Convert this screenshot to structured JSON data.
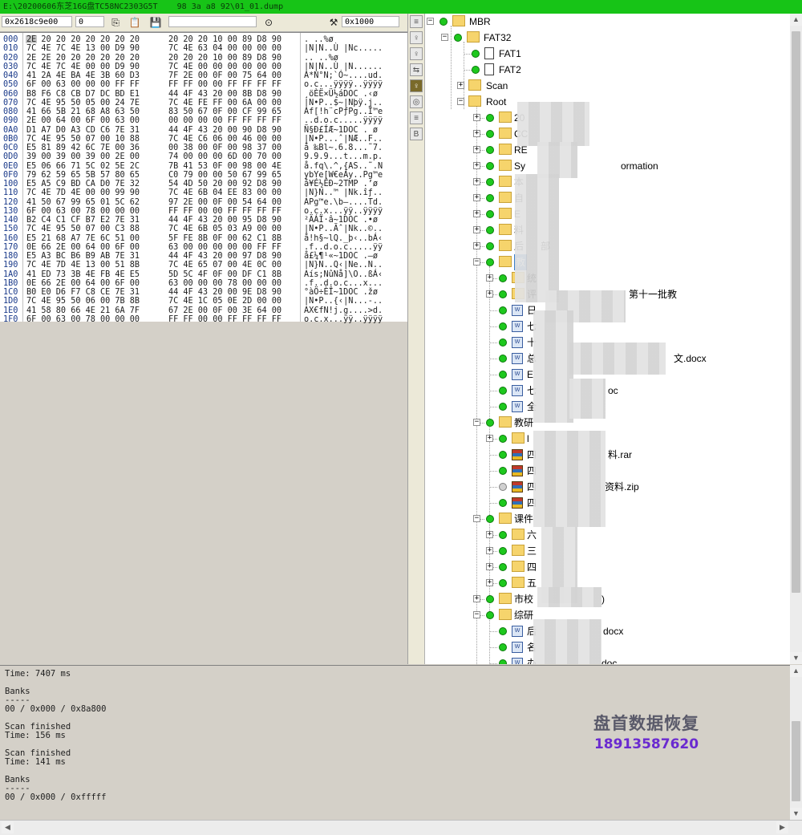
{
  "window": {
    "title": "E:\\20200606东芝16G盘TC58NC2303G5T    98 3a a8 92\\01_01.dump"
  },
  "hex_toolbar": {
    "offset": "0x2618c9e00",
    "value": "0",
    "size": "0x1000"
  },
  "hex": {
    "rows": [
      {
        "off": "000",
        "b1": "2E 20 20 20 20 20 20 20",
        "b2": "20 20 20 10 00 89 D8 90",
        "asc": ". ..%ø"
      },
      {
        "off": "010",
        "b1": "7C 4E 7C 4E 13 00 D9 90",
        "b2": "7C 4E 63 04 00 00 00 00",
        "asc": "|N|N..Ù |Nc....."
      },
      {
        "off": "020",
        "b1": "2E 2E 20 20 20 20 20 20",
        "b2": "20 20 20 10 00 89 D8 90",
        "asc": ".. ..%ø"
      },
      {
        "off": "030",
        "b1": "7C 4E 7C 4E 00 00 D9 90",
        "b2": "7C 4E 00 00 00 00 00 00",
        "asc": "|N|N..Ù |N......"
      },
      {
        "off": "040",
        "b1": "41 2A 4E BA 4E 3B 60 D3",
        "b2": "7F 2E 00 0F 00 75 64 00",
        "asc": "A*N°N;`Ó~....ud."
      },
      {
        "off": "050",
        "b1": "6F 00 63 00 00 00 FF FF",
        "b2": "FF FF 00 00 FF FF FF FF",
        "asc": "o.c...ÿÿÿÿ..ÿÿÿÿ"
      },
      {
        "off": "060",
        "b1": "B8 F6 C8 CB D7 DC BD E1",
        "b2": "44 4F 43 20 00 8B D8 90",
        "asc": "¸öÈË×Ü½áDOC .‹ø"
      },
      {
        "off": "070",
        "b1": "7C 4E 95 50 05 00 24 7E",
        "b2": "7C 4E FE FF 00 6A 00 00",
        "asc": "|N•P..$~|Nþÿ.j.."
      },
      {
        "off": "080",
        "b1": "41 66 5B 21 68 A8 63 50",
        "b2": "83 50 67 0F 00 CF 99 65",
        "asc": "Af[!h¨cPƒPg..Ï™e"
      },
      {
        "off": "090",
        "b1": "2E 00 64 00 6F 00 63 00",
        "b2": "00 00 00 00 FF FF FF FF",
        "asc": "..d.o.c.....ÿÿÿÿ"
      },
      {
        "off": "0A0",
        "b1": "D1 A7 D0 A3 CD C6 7E 31",
        "b2": "44 4F 43 20 00 90 D8 90",
        "asc": "Ñ§Ð£ÍÆ~1DOC . ø"
      },
      {
        "off": "0B0",
        "b1": "7C 4E 95 50 07 00 10 88",
        "b2": "7C 4E C6 06 00 46 00 00",
        "asc": "|N•P...ˆ|NÆ..F.."
      },
      {
        "off": "0C0",
        "b1": "E5 81 89 42 6C 7E 00 36",
        "b2": "00 38 00 0F 00 98 37 00",
        "asc": "å ‰Bl~.6.8...˜7."
      },
      {
        "off": "0D0",
        "b1": "39 00 39 00 39 00 2E 00",
        "b2": "74 00 00 00 6D 00 70 00",
        "asc": "9.9.9...t...m.p."
      },
      {
        "off": "0E0",
        "b1": "E5 06 66 71 5C 02 5E 2C",
        "b2": "7B 41 53 0F 00 98 00 4E",
        "asc": "å.fq\\.^,{AS..˜.N"
      },
      {
        "off": "0F0",
        "b1": "79 62 59 65 5B 57 80 65",
        "b2": "C0 79 00 00 50 67 99 65",
        "asc": "ybYe[W€eÀy..Pg™e"
      },
      {
        "off": "100",
        "b1": "E5 A5 C9 BD CA D0 7E 32",
        "b2": "54 4D 50 20 00 92 D8 90",
        "asc": "å¥É½ÊÐ~2TMP .’ø"
      },
      {
        "off": "110",
        "b1": "7C 4E 7D 4E 00 00 99 90",
        "b2": "7C 4E 6B 04 EE 83 00 00",
        "asc": "|N}N..™ |Nk.îƒ.."
      },
      {
        "off": "120",
        "b1": "41 50 67 99 65 01 5C 62",
        "b2": "97 2E 00 0F 00 54 64 00",
        "asc": "APg™e.\\b—....Td."
      },
      {
        "off": "130",
        "b1": "6F 00 63 00 78 00 00 00",
        "b2": "FF FF 00 00 FF FF FF FF",
        "asc": "o.c.x...ÿÿ..ÿÿÿÿ"
      },
      {
        "off": "140",
        "b1": "B2 C4 C1 CF B7 E2 7E 31",
        "b2": "44 4F 43 20 00 95 D8 90",
        "asc": "²ÄÁÏ·â~1DOC .•ø"
      },
      {
        "off": "150",
        "b1": "7C 4E 95 50 07 00 C3 88",
        "b2": "7C 4E 6B 05 03 A9 00 00",
        "asc": "|N•P..Ãˆ|Nk..©.."
      },
      {
        "off": "160",
        "b1": "E5 21 68 A7 7E 6C 51 00",
        "b2": "5F FE 8B 0F 00 62 C1 8B",
        "asc": "å!h§~lQ._þ‹..bÁ‹"
      },
      {
        "off": "170",
        "b1": "0E 66 2E 00 64 00 6F 00",
        "b2": "63 00 00 00 00 00 FF FF",
        "asc": ".f..d.o.c.....ÿÿ"
      },
      {
        "off": "180",
        "b1": "E5 A3 BC B6 B9 AB 7E 31",
        "b2": "44 4F 43 20 00 97 D8 90",
        "asc": "å£¼¶¹«~1DOC .—ø"
      },
      {
        "off": "190",
        "b1": "7C 4E 7D 4E 13 00 51 8B",
        "b2": "7C 4E 65 07 00 4E 0C 00",
        "asc": "|N}N..Q‹|Ne..N.."
      },
      {
        "off": "1A0",
        "b1": "41 ED 73 3B 4E FB 4E E5",
        "b2": "5D 5C 4F 0F 00 DF C1 8B",
        "asc": "Aís;NûNå]\\O..ßÁ‹"
      },
      {
        "off": "1B0",
        "b1": "0E 66 2E 00 64 00 6F 00",
        "b2": "63 00 00 00 78 00 00 00",
        "asc": ".f..d.o.c...x..."
      },
      {
        "off": "1C0",
        "b1": "B0 E0 D6 F7 C8 CE 7E 31",
        "b2": "44 4F 43 20 00 9E D8 90",
        "asc": "°àÖ÷ÈÎ~1DOC .žø"
      },
      {
        "off": "1D0",
        "b1": "7C 4E 95 50 06 00 7B 8B",
        "b2": "7C 4E 1C 05 0E 2D 00 00",
        "asc": "|N•P..{‹|N...-.."
      },
      {
        "off": "1E0",
        "b1": "41 58 80 66 4E 21 6A 7F",
        "b2": "67 2E 00 0F 00 3E 64 00",
        "asc": "AX€fN!j.g....>d."
      },
      {
        "off": "1F0",
        "b1": "6F 00 63 00 78 00 00 00",
        "b2": "FF FF 00 00 FF FF FF FF",
        "asc": "o.c.x...ÿÿ..ÿÿÿÿ"
      }
    ]
  },
  "side_tools": [
    "≡",
    "♀",
    "♀",
    "⇆",
    "♀",
    "◎",
    "≡",
    "B"
  ],
  "tree": {
    "mbr": "MBR",
    "fat32": "FAT32",
    "fat1": "FAT1",
    "fat2": "FAT2",
    "scan": "Scan",
    "root": "Root",
    "r1": "20",
    "r2": "CC",
    "r3": "RE",
    "r4a": "Sy",
    "r4b": "ormation",
    "r5": "本",
    "r6": "自",
    "r7": "E",
    "r8": "料",
    "r9": "后",
    "r9b": "部",
    "r10": "教",
    "r10a": "统",
    "r10b": "评",
    "r10b2": "第十一批教",
    "r10c": "日",
    "r10d": "七",
    "r10e": "十",
    "r10f": "总",
    "r10f2": "文.docx",
    "r10g": "E",
    "r10h": "七",
    "r10h2": "oc",
    "r10i": "全",
    "r11": "教研",
    "r11a": "l",
    "r11b": "四",
    "r11b2": "料.rar",
    "r11c": "四",
    "r11d": "四",
    "r11d2": "资料.zip",
    "r11e": "四",
    "r12": "课件",
    "r12a": "六",
    "r12b": "三",
    "r12c": "四",
    "r12d": "五",
    "r13": "市校",
    "r13b": ")",
    "r14": "综研",
    "r14a": "后",
    "r14a2": "docx",
    "r14b": "名",
    "r14c": "办",
    "r14c2": "doc"
  },
  "log": {
    "lines": [
      "Time: 7407 ms",
      "",
      "Banks",
      "-----",
      "00 / 0x000 / 0x8a800",
      "",
      "Scan finished",
      "Time: 156 ms",
      "",
      "Scan finished",
      "Time: 141 ms",
      "",
      "Banks",
      "-----",
      "00 / 0x000 / 0xfffff"
    ]
  },
  "watermark": {
    "name": "盘首数据恢复",
    "phone": "18913587620"
  },
  "icons": [
    "binoculars-icon",
    "tools-icon",
    "copy-icon",
    "paste-icon",
    "save-icon",
    "folder-icon",
    "file-icon",
    "doc-icon",
    "archive-icon"
  ]
}
